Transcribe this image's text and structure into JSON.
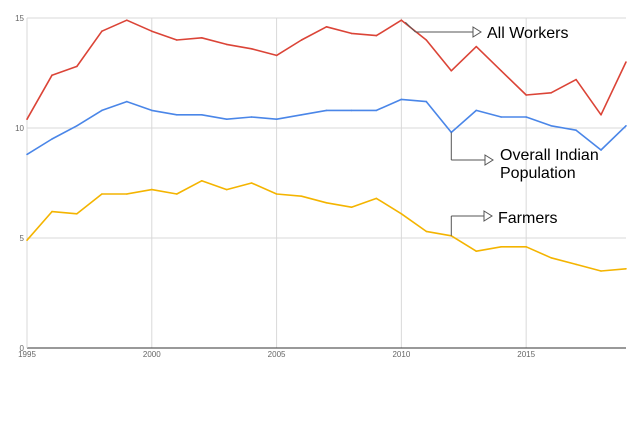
{
  "chart_data": {
    "type": "line",
    "title": "",
    "xlabel": "",
    "ylabel": "",
    "x": [
      1995,
      1996,
      1997,
      1998,
      1999,
      2000,
      2001,
      2002,
      2003,
      2004,
      2005,
      2006,
      2007,
      2008,
      2009,
      2010,
      2011,
      2012,
      2013,
      2014,
      2015,
      2016,
      2017,
      2018,
      2019
    ],
    "xlim": [
      1995,
      2019
    ],
    "ylim": [
      0,
      15
    ],
    "x_ticks": [
      "1995",
      "2000",
      "2005",
      "2010",
      "2015"
    ],
    "y_ticks": [
      "0",
      "5",
      "10",
      "15"
    ],
    "grid": true,
    "series": [
      {
        "name": "All Workers",
        "color": "#db4437",
        "values": [
          10.4,
          12.4,
          12.8,
          14.4,
          14.9,
          14.4,
          14.0,
          14.1,
          13.8,
          13.6,
          13.3,
          14.0,
          14.6,
          14.3,
          14.2,
          14.9,
          14.0,
          12.6,
          13.7,
          12.6,
          11.5,
          11.6,
          12.2,
          10.6,
          13.0
        ]
      },
      {
        "name": "Overall Indian Population",
        "color": "#4a86e8",
        "values": [
          8.8,
          9.5,
          10.1,
          10.8,
          11.2,
          10.8,
          10.6,
          10.6,
          10.4,
          10.5,
          10.4,
          10.6,
          10.8,
          10.8,
          10.8,
          11.3,
          11.2,
          9.8,
          10.8,
          10.5,
          10.5,
          10.1,
          9.9,
          9.0,
          10.1
        ]
      },
      {
        "name": "Farmers",
        "color": "#f4b400",
        "values": [
          4.9,
          6.2,
          6.1,
          7.0,
          7.0,
          7.2,
          7.0,
          7.6,
          7.2,
          7.5,
          7.0,
          6.9,
          6.6,
          6.4,
          6.8,
          6.1,
          5.3,
          5.1,
          4.4,
          4.6,
          4.6,
          4.1,
          3.8,
          3.5,
          3.6
        ]
      }
    ],
    "annotations": [
      {
        "label": "All Workers",
        "series": 0,
        "x": 2010
      },
      {
        "label_lines": [
          "Overall Indian",
          "Population"
        ],
        "series": 1,
        "x": 2012
      },
      {
        "label": "Farmers",
        "series": 2,
        "x": 2012
      }
    ],
    "colors": {
      "grid": "#d9d9d9",
      "baseline": "#333333",
      "tick_text": "#666666",
      "annotation_line": "#555555"
    }
  }
}
